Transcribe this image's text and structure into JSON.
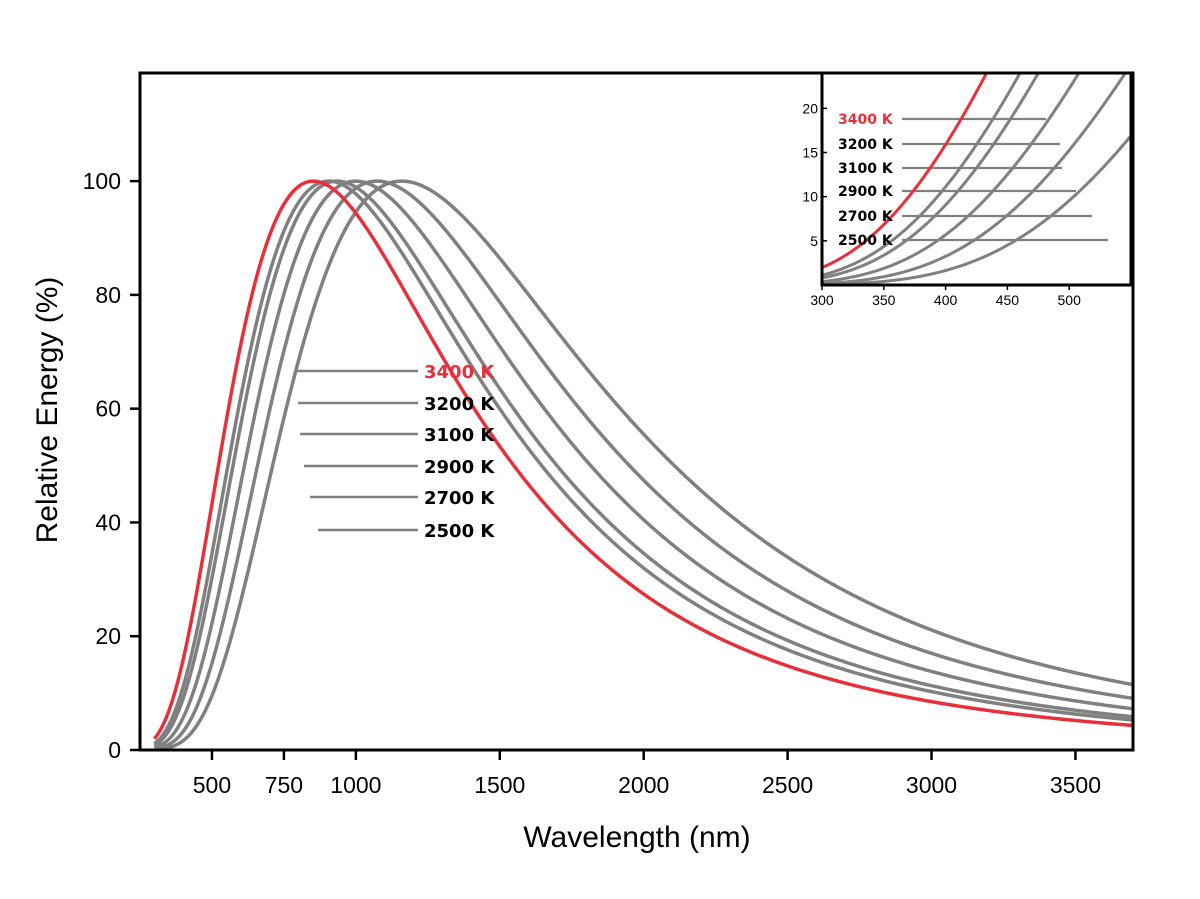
{
  "chart_data": [
    {
      "type": "line",
      "xlabel": "Wavelength (nm)",
      "ylabel": "Relative Energy (%)",
      "xlim": [
        250,
        3700
      ],
      "ylim": [
        0,
        119
      ],
      "xticks": [
        500,
        750,
        1000,
        1500,
        2000,
        2500,
        3000,
        3500
      ],
      "yticks": [
        0,
        20,
        40,
        60,
        80,
        100
      ],
      "grid": false,
      "legend_placement": "center-left",
      "series": [
        {
          "name": "3400 K",
          "color": "#e8303a",
          "temperature": 3400
        },
        {
          "name": "3200 K",
          "color": "#808080",
          "temperature": 3200
        },
        {
          "name": "3100 K",
          "color": "#808080",
          "temperature": 3100
        },
        {
          "name": "2900 K",
          "color": "#808080",
          "temperature": 2900
        },
        {
          "name": "2700 K",
          "color": "#808080",
          "temperature": 2700
        },
        {
          "name": "2500 K",
          "color": "#808080",
          "temperature": 2500
        }
      ]
    },
    {
      "type": "line",
      "role": "inset",
      "xlim": [
        300,
        550
      ],
      "ylim": [
        0,
        24
      ],
      "xticks": [
        300,
        350,
        400,
        450,
        500
      ],
      "yticks": [
        5,
        10,
        15,
        20
      ],
      "legend_placement": "left",
      "series": [
        {
          "name": "3400 K",
          "color": "#e8303a",
          "temperature": 3400
        },
        {
          "name": "3200 K",
          "color": "#808080",
          "temperature": 3200
        },
        {
          "name": "3100 K",
          "color": "#808080",
          "temperature": 3100
        },
        {
          "name": "2900 K",
          "color": "#808080",
          "temperature": 2900
        },
        {
          "name": "2700 K",
          "color": "#808080",
          "temperature": 2700
        },
        {
          "name": "2500 K",
          "color": "#808080",
          "temperature": 2500
        }
      ]
    }
  ]
}
